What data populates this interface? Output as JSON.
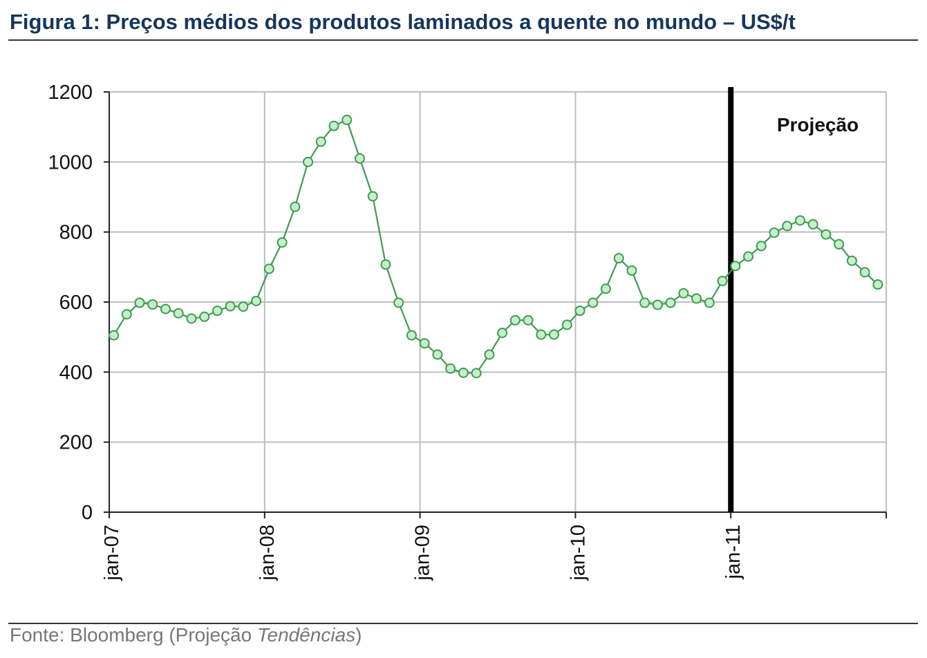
{
  "figure": {
    "title": "Figura 1: Preços médios dos produtos laminados a quente no mundo – US$/t",
    "source_prefix": "Fonte: Bloomberg (Projeção ",
    "source_italic": "Tendências",
    "source_suffix": ")"
  },
  "chart_data": {
    "type": "line",
    "title": "Figura 1: Preços médios dos produtos laminados a quente no mundo – US$/t",
    "xlabel": "",
    "ylabel": "",
    "ylim": [
      0,
      1200
    ],
    "yticks": [
      0,
      200,
      400,
      600,
      800,
      1000,
      1200
    ],
    "x_tick_labels": [
      "jan-07",
      "jan-08",
      "jan-09",
      "jan-10",
      "jan-11"
    ],
    "x_start": "jan-07",
    "x_end": "dez-11",
    "grid": true,
    "annotation": {
      "label": "Projeção",
      "at": "jan-11"
    },
    "x": [
      "jan-07",
      "fev-07",
      "mar-07",
      "abr-07",
      "mai-07",
      "jun-07",
      "jul-07",
      "ago-07",
      "set-07",
      "out-07",
      "nov-07",
      "dez-07",
      "jan-08",
      "fev-08",
      "mar-08",
      "abr-08",
      "mai-08",
      "jun-08",
      "jul-08",
      "ago-08",
      "set-08",
      "out-08",
      "nov-08",
      "dez-08",
      "jan-09",
      "fev-09",
      "mar-09",
      "abr-09",
      "mai-09",
      "jun-09",
      "jul-09",
      "ago-09",
      "set-09",
      "out-09",
      "nov-09",
      "dez-09",
      "jan-10",
      "fev-10",
      "mar-10",
      "abr-10",
      "mai-10",
      "jun-10",
      "jul-10",
      "ago-10",
      "set-10",
      "out-10",
      "nov-10",
      "dez-10",
      "jan-11",
      "fev-11",
      "mar-11",
      "abr-11",
      "mai-11",
      "jun-11",
      "jul-11",
      "ago-11",
      "set-11",
      "out-11",
      "nov-11",
      "dez-11"
    ],
    "series": [
      {
        "color": "#3f9a52",
        "marker_fill": "#c6f0c9",
        "values": [
          505,
          565,
          598,
          593,
          580,
          568,
          553,
          558,
          575,
          588,
          587,
          603,
          695,
          770,
          872,
          1000,
          1058,
          1103,
          1120,
          1010,
          902,
          707,
          598,
          505,
          482,
          450,
          410,
          398,
          397,
          450,
          512,
          548,
          548,
          507,
          507,
          535,
          575,
          598,
          638,
          725,
          690,
          598,
          592,
          598,
          625,
          610,
          598,
          660,
          703,
          730,
          760,
          798,
          817,
          833,
          822,
          793,
          765,
          718,
          685,
          650
        ]
      }
    ]
  }
}
